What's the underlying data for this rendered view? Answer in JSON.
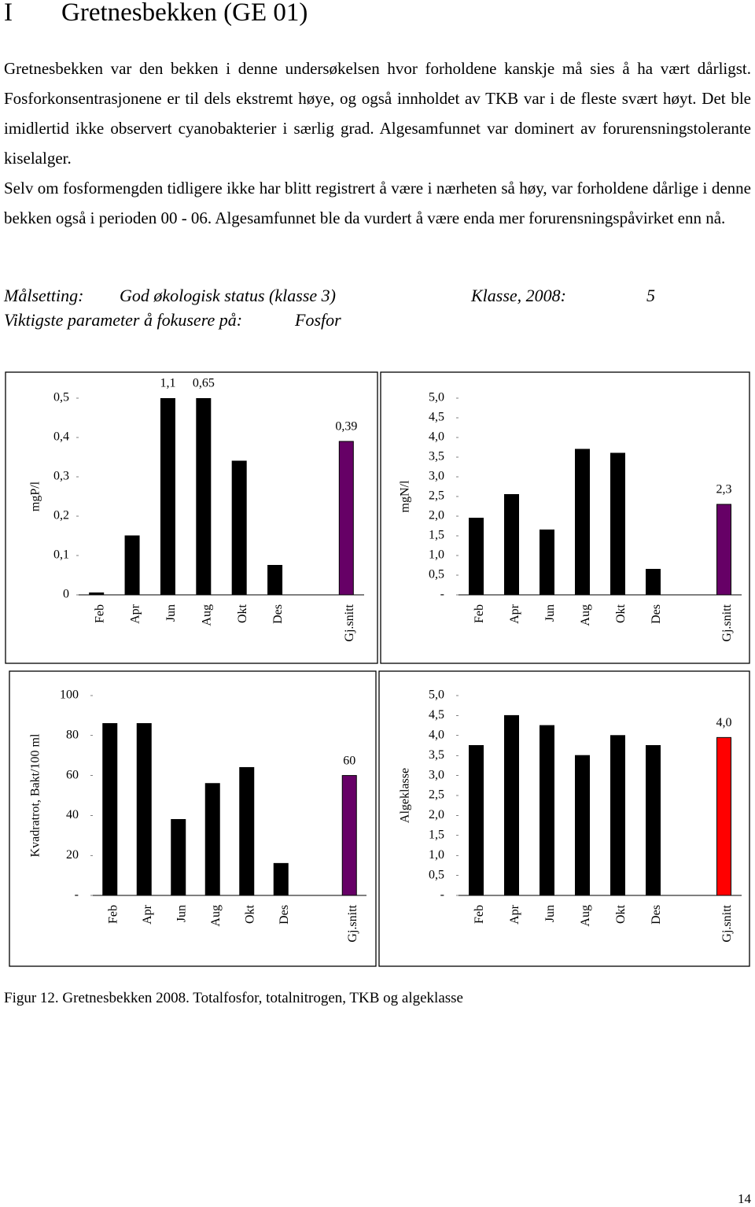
{
  "header": {
    "number": "I",
    "title": "Gretnesbekken (GE 01)"
  },
  "paragraphs": [
    "Gretnesbekken var den bekken i denne undersøkelsen hvor forholdene kanskje må sies å ha vært dårligst. Fosforkonsentrasjonene er til dels ekstremt høye, og også innholdet av TKB var i de fleste svært høyt. Det ble imidlertid ikke observert cyanobakterier i særlig grad. Algesamfunnet var dominert av forurensningstolerante kiselalger.",
    "Selv om fosformengden tidligere ikke har blitt registrert å være i nærheten så høy, var forholdene dårlige i denne bekken også i perioden 00 - 06. Algesamfunnet ble da vurdert å være enda mer forurensningspåvirket enn nå."
  ],
  "goals": {
    "target_label": "Målsetting:",
    "target": "God økologisk status (klasse 3)",
    "class_label": "Klasse, 2008:",
    "class": "5",
    "focus_label": "Viktigste parameter å fokusere på:",
    "focus": "Fosfor"
  },
  "chart_data": [
    {
      "type": "bar",
      "y_label": "mgP/l",
      "categories": [
        "Feb",
        "Apr",
        "Jun",
        "Aug",
        "Okt",
        "Des",
        null,
        "Gj.snitt"
      ],
      "values": [
        0.005,
        0.15,
        1.1,
        0.65,
        0.34,
        0.075,
        null,
        0.39
      ],
      "value_labels": [
        null,
        null,
        "1,1",
        "0,65",
        null,
        null,
        null,
        "0,39"
      ],
      "colors": [
        "#000000",
        "#000000",
        "#000000",
        "#000000",
        "#000000",
        "#000000",
        null,
        "#660066"
      ],
      "ylim": [
        0,
        0.5
      ],
      "yticks": [
        0,
        {
          "value": 0.1,
          "label": "0,1"
        },
        {
          "value": 0.2,
          "label": "0,2"
        },
        {
          "value": 0.3,
          "label": "0,3"
        },
        {
          "value": 0.4,
          "label": "0,4"
        },
        {
          "value": 0.5,
          "label": "0,5"
        }
      ]
    },
    {
      "type": "bar",
      "y_label": "mgN/l",
      "categories": [
        "Feb",
        "Apr",
        "Jun",
        "Aug",
        "Okt",
        "Des",
        null,
        "Gj.snitt"
      ],
      "values": [
        1.95,
        2.55,
        1.65,
        3.7,
        3.6,
        0.65,
        null,
        2.3
      ],
      "value_labels": [
        null,
        null,
        null,
        null,
        null,
        null,
        null,
        "2,3"
      ],
      "colors": [
        "#000000",
        "#000000",
        "#000000",
        "#000000",
        "#000000",
        "#000000",
        null,
        "#660066"
      ],
      "ylim": [
        0,
        5
      ],
      "yticks": [
        {
          "value": 0,
          "label": "-"
        },
        {
          "value": 0.5,
          "label": "0,5"
        },
        {
          "value": 1,
          "label": "1,0"
        },
        {
          "value": 1.5,
          "label": "1,5"
        },
        {
          "value": 2,
          "label": "2,0"
        },
        {
          "value": 2.5,
          "label": "2,5"
        },
        {
          "value": 3,
          "label": "3,0"
        },
        {
          "value": 3.5,
          "label": "3,5"
        },
        {
          "value": 4,
          "label": "4,0"
        },
        {
          "value": 4.5,
          "label": "4,5"
        },
        {
          "value": 5,
          "label": "5,0"
        }
      ]
    },
    {
      "type": "bar",
      "y_label": "Kvadratrot, Bakt/100 ml",
      "categories": [
        "Feb",
        "Apr",
        "Jun",
        "Aug",
        "Okt",
        "Des",
        null,
        "Gj.snitt"
      ],
      "values": [
        86,
        86,
        38,
        56,
        64,
        16,
        null,
        60
      ],
      "value_labels": [
        null,
        null,
        null,
        null,
        null,
        null,
        null,
        "60"
      ],
      "colors": [
        "#000000",
        "#000000",
        "#000000",
        "#000000",
        "#000000",
        "#000000",
        null,
        "#660066"
      ],
      "ylim": [
        0,
        100
      ],
      "yticks": [
        {
          "value": 0,
          "label": "-"
        },
        20,
        40,
        60,
        80,
        100
      ]
    },
    {
      "type": "bar",
      "y_label": "Algeklasse",
      "categories": [
        "Feb",
        "Apr",
        "Jun",
        "Aug",
        "Okt",
        "Des",
        null,
        "Gj.snitt"
      ],
      "values": [
        3.75,
        4.5,
        4.25,
        3.5,
        4.0,
        3.75,
        null,
        3.95
      ],
      "value_labels": [
        null,
        null,
        null,
        null,
        null,
        null,
        null,
        "4,0"
      ],
      "colors": [
        "#000000",
        "#000000",
        "#000000",
        "#000000",
        "#000000",
        "#000000",
        null,
        "#ff0000"
      ],
      "ylim": [
        0,
        5
      ],
      "yticks": [
        {
          "value": 0,
          "label": "-"
        },
        {
          "value": 0.5,
          "label": "0,5"
        },
        {
          "value": 1,
          "label": "1,0"
        },
        {
          "value": 1.5,
          "label": "1,5"
        },
        {
          "value": 2,
          "label": "2,0"
        },
        {
          "value": 2.5,
          "label": "2,5"
        },
        {
          "value": 3,
          "label": "3,0"
        },
        {
          "value": 3.5,
          "label": "3,5"
        },
        {
          "value": 4,
          "label": "4,0"
        },
        {
          "value": 4.5,
          "label": "4,5"
        },
        {
          "value": 5,
          "label": "5,0"
        }
      ]
    }
  ],
  "caption": "Figur 12. Gretnesbekken 2008. Totalfosfor, totalnitrogen, TKB og algeklasse",
  "page_number": "14"
}
